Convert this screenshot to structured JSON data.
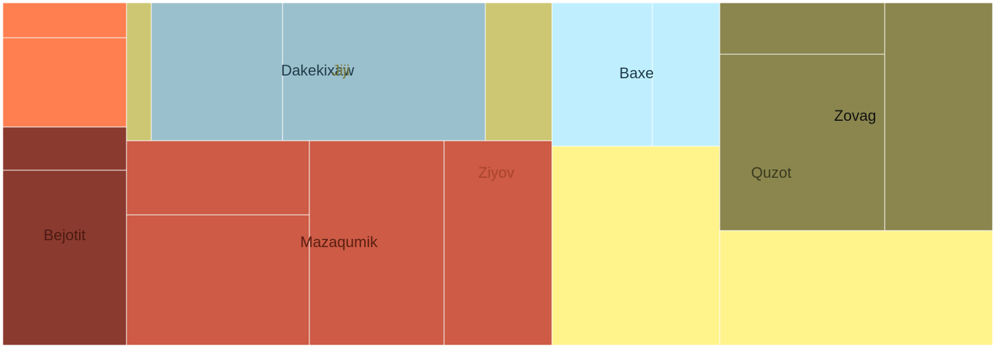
{
  "chart_data": {
    "type": "treemap",
    "title": "",
    "colors": {
      "orange": "#FF7F50",
      "brown": "#8B3A2F",
      "khaki": "#CDC673",
      "steelblue": "#9BC0CD",
      "coral": "#CD5B45",
      "lightblue": "#BFEFFF",
      "yellow": "#FFF38C",
      "olive": "#8B864E"
    },
    "cells": [
      {
        "id": "c1",
        "value": 9.8,
        "color": "orange"
      },
      {
        "id": "c2",
        "value": 23.8,
        "color": "orange"
      },
      {
        "id": "c3",
        "value": 11.3,
        "color": "brown"
      },
      {
        "id": "c4",
        "value": 46.2,
        "color": "brown"
      },
      {
        "id": "c5",
        "value": 7.4,
        "color": "khaki"
      },
      {
        "id": "c6",
        "value": 38.8,
        "color": "steelblue"
      },
      {
        "id": "c7",
        "value": 59.8,
        "color": "steelblue"
      },
      {
        "id": "c8",
        "value": 19.8,
        "color": "khaki"
      },
      {
        "id": "c9",
        "value": 28.7,
        "color": "coral"
      },
      {
        "id": "c10",
        "value": 50.3,
        "color": "coral"
      },
      {
        "id": "c11",
        "value": 58.9,
        "color": "coral"
      },
      {
        "id": "c12",
        "value": 46.9,
        "color": "coral"
      },
      {
        "id": "c13",
        "value": 30.7,
        "color": "lightblue"
      },
      {
        "id": "c14",
        "value": 20.2,
        "color": "lightblue"
      },
      {
        "id": "c15",
        "value": 71.0,
        "color": "yellow"
      },
      {
        "id": "c16",
        "value": 18.3,
        "color": "olive"
      },
      {
        "id": "c17",
        "value": 62.0,
        "color": "olive"
      },
      {
        "id": "c18",
        "value": 52.0,
        "color": "olive"
      },
      {
        "id": "c19",
        "value": 66.2,
        "color": "yellow"
      }
    ],
    "labels": [
      {
        "text": "Dakekixaw",
        "color": "#1F3A48"
      },
      {
        "text": "Jiji",
        "color": "#7A7A3A"
      },
      {
        "text": "Baxe",
        "color": "#1F3A48"
      },
      {
        "text": "Zovag",
        "color": "#111111"
      },
      {
        "text": "Ziyov",
        "color": "#A8442F"
      },
      {
        "text": "Quzot",
        "color": "#3A3A1E"
      },
      {
        "text": "Bejotit",
        "color": "#4A1A12"
      },
      {
        "text": "Mazaqumik",
        "color": "#5A1E12"
      }
    ]
  }
}
